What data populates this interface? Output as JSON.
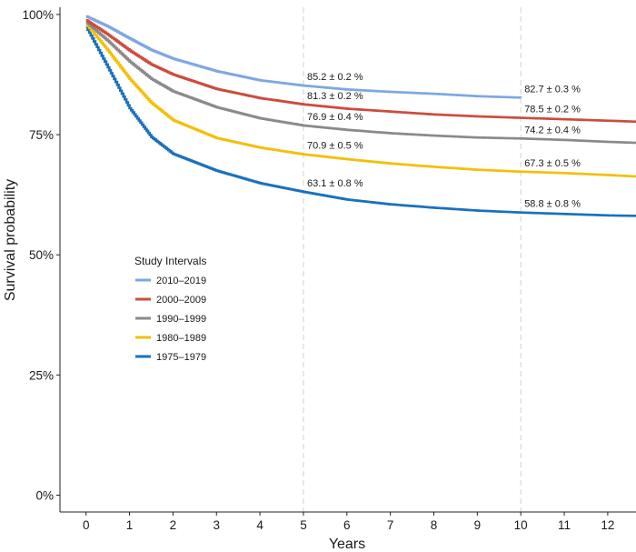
{
  "chart_data": {
    "type": "line",
    "xlabel": "Years",
    "ylabel": "Survival probability",
    "xlim": [
      -0.6,
      12.65
    ],
    "ylim": [
      -3.5,
      101.5
    ],
    "x_ticks": [
      0,
      1,
      2,
      3,
      4,
      5,
      6,
      7,
      8,
      9,
      10,
      11,
      12
    ],
    "x_tick_labels": [
      "0",
      "1",
      "2",
      "3",
      "4",
      "5",
      "6",
      "7",
      "8",
      "9",
      "10",
      "11",
      "12"
    ],
    "y_ticks": [
      0,
      25,
      50,
      75,
      100
    ],
    "y_tick_labels": [
      "0%",
      "25%",
      "50%",
      "75%",
      "100%"
    ],
    "reference_lines_x": [
      5,
      10
    ],
    "legend": {
      "title": "Study Intervals",
      "placement": "center-left"
    },
    "series": [
      {
        "name": "2010–2019",
        "color": "#7ea7e0",
        "points": [
          [
            0,
            99.6
          ],
          [
            0.5,
            97.5
          ],
          [
            1,
            95
          ],
          [
            1.5,
            92.6
          ],
          [
            2,
            90.8
          ],
          [
            3,
            88.2
          ],
          [
            4,
            86.3
          ],
          [
            5,
            85.2
          ],
          [
            6,
            84.4
          ],
          [
            7,
            83.9
          ],
          [
            8,
            83.5
          ],
          [
            9,
            83
          ],
          [
            10,
            82.7
          ]
        ]
      },
      {
        "name": "2000–2009",
        "color": "#cc4c3e",
        "points": [
          [
            0,
            98.8
          ],
          [
            0.5,
            95.8
          ],
          [
            1,
            92.5
          ],
          [
            1.5,
            89.6
          ],
          [
            2,
            87.5
          ],
          [
            3,
            84.5
          ],
          [
            4,
            82.6
          ],
          [
            5,
            81.3
          ],
          [
            6,
            80.4
          ],
          [
            7,
            79.8
          ],
          [
            8,
            79.2
          ],
          [
            9,
            78.8
          ],
          [
            10,
            78.5
          ],
          [
            11,
            78.2
          ],
          [
            12,
            77.9
          ],
          [
            12.65,
            77.7
          ]
        ]
      },
      {
        "name": "1990–1999",
        "color": "#8a8a8a",
        "points": [
          [
            0,
            98.4
          ],
          [
            0.5,
            94.5
          ],
          [
            1,
            90.2
          ],
          [
            1.5,
            86.6
          ],
          [
            2,
            84
          ],
          [
            3,
            80.7
          ],
          [
            4,
            78.4
          ],
          [
            5,
            76.9
          ],
          [
            6,
            76
          ],
          [
            7,
            75.3
          ],
          [
            8,
            74.8
          ],
          [
            9,
            74.4
          ],
          [
            10,
            74.2
          ],
          [
            11,
            73.9
          ],
          [
            12,
            73.5
          ],
          [
            12.65,
            73.3
          ]
        ]
      },
      {
        "name": "1980–1989",
        "color": "#f2c00a",
        "points": [
          [
            0,
            98
          ],
          [
            0.5,
            92.5
          ],
          [
            1,
            86.6
          ],
          [
            1.5,
            81.6
          ],
          [
            2,
            78
          ],
          [
            3,
            74.3
          ],
          [
            4,
            72.3
          ],
          [
            5,
            70.9
          ],
          [
            6,
            69.9
          ],
          [
            7,
            69
          ],
          [
            8,
            68.3
          ],
          [
            9,
            67.7
          ],
          [
            10,
            67.3
          ],
          [
            11,
            67
          ],
          [
            12,
            66.6
          ],
          [
            12.65,
            66.3
          ]
        ]
      },
      {
        "name": "1975–1979",
        "color": "#1a70bd",
        "points": [
          [
            0,
            97.4
          ],
          [
            0.5,
            89
          ],
          [
            1,
            80.5
          ],
          [
            1.5,
            74.5
          ],
          [
            2,
            71
          ],
          [
            3,
            67.5
          ],
          [
            4,
            64.9
          ],
          [
            5,
            63.1
          ],
          [
            6,
            61.5
          ],
          [
            7,
            60.5
          ],
          [
            8,
            59.8
          ],
          [
            9,
            59.2
          ],
          [
            10,
            58.8
          ],
          [
            11,
            58.5
          ],
          [
            12,
            58.2
          ],
          [
            12.65,
            58.1
          ]
        ]
      }
    ],
    "annotations": [
      {
        "text": "85.2 ± 0.2 %",
        "x": 5,
        "y": 85.2
      },
      {
        "text": "81.3 ± 0.2 %",
        "x": 5,
        "y": 81.3
      },
      {
        "text": "76.9 ± 0.4 %",
        "x": 5,
        "y": 76.9
      },
      {
        "text": "70.9 ± 0.5 %",
        "x": 5,
        "y": 70.9
      },
      {
        "text": "63.1 ± 0.8 %",
        "x": 5,
        "y": 63.1
      },
      {
        "text": "82.7 ± 0.3 %",
        "x": 10,
        "y": 82.7
      },
      {
        "text": "78.5 ± 0.2 %",
        "x": 10,
        "y": 78.5
      },
      {
        "text": "74.2 ± 0.4 %",
        "x": 10,
        "y": 74.2
      },
      {
        "text": "67.3 ± 0.5 %",
        "x": 10,
        "y": 67.3
      },
      {
        "text": "58.8 ± 0.8 %",
        "x": 10,
        "y": 58.8
      }
    ]
  }
}
